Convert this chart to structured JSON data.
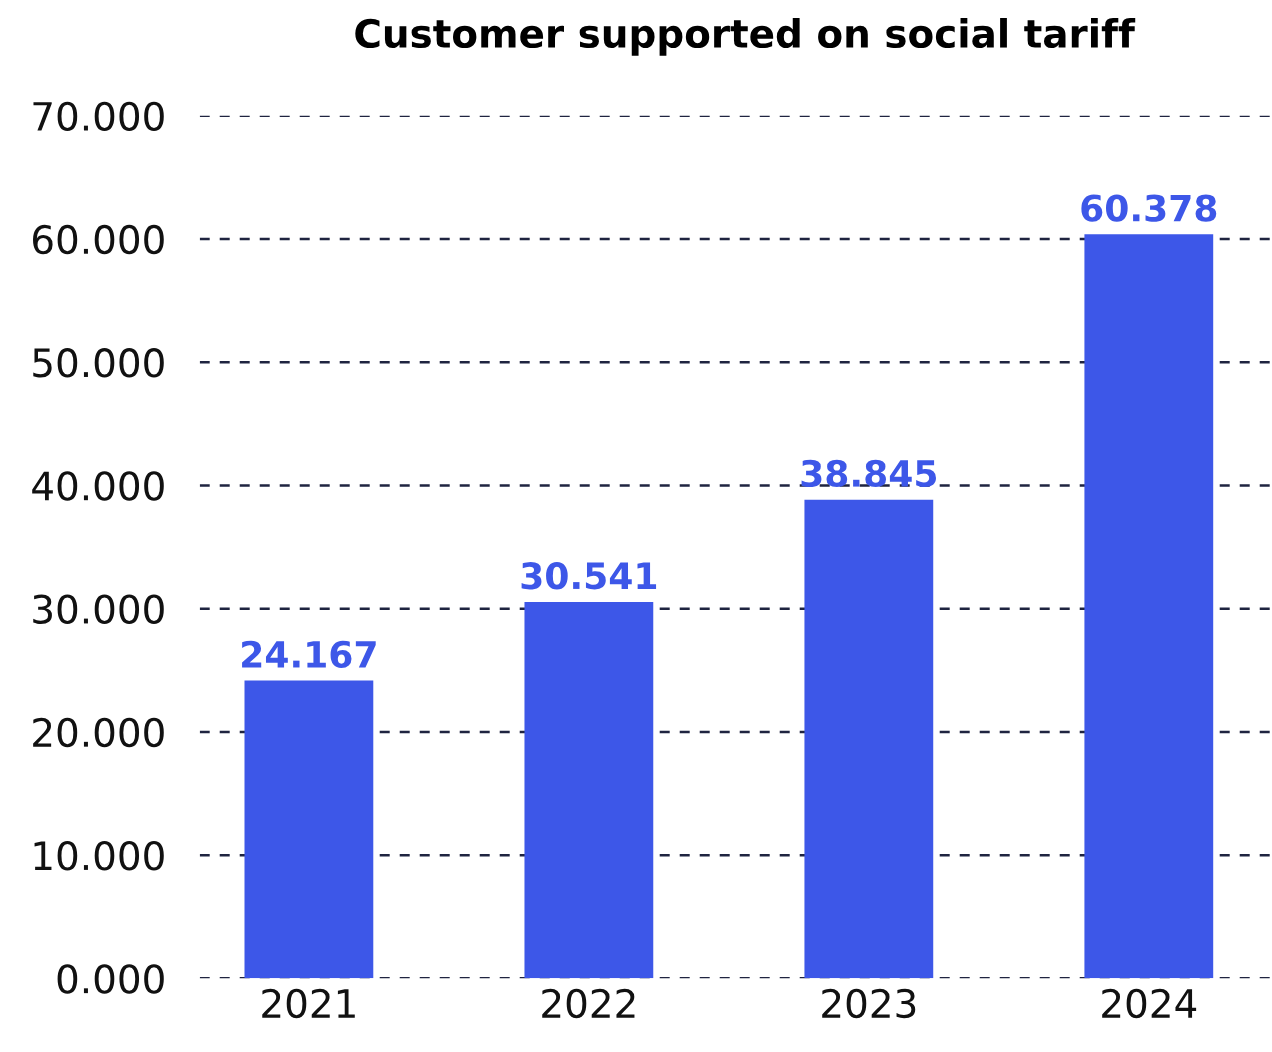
{
  "chart_data": {
    "type": "bar",
    "title": "Customer supported on social tariff",
    "categories": [
      "2021",
      "2022",
      "2023",
      "2024"
    ],
    "values": [
      24.167,
      30.541,
      38.845,
      60.378
    ],
    "value_labels": [
      "24.167",
      "30.541",
      "38.845",
      "60.378"
    ],
    "color": "#3d57e8",
    "ylim": [
      0,
      70
    ],
    "yticks": [
      {
        "value": 0,
        "label": "0.000"
      },
      {
        "value": 10,
        "label": "10.000"
      },
      {
        "value": 20,
        "label": "20.000"
      },
      {
        "value": 30,
        "label": "30.000"
      },
      {
        "value": 40,
        "label": "40.000"
      },
      {
        "value": 50,
        "label": "50.000"
      },
      {
        "value": 60,
        "label": "60.000"
      },
      {
        "value": 70,
        "label": "70.000"
      }
    ],
    "grid": "y",
    "legend": false
  }
}
